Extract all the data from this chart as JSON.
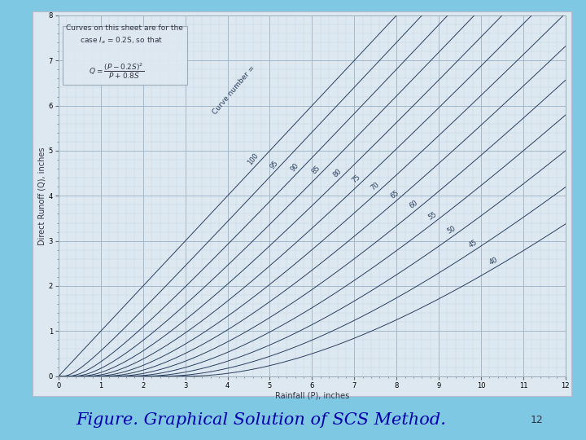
{
  "title": "Figure. Graphical Solution of SCS Method.",
  "page_num": "12",
  "xlabel": "Rainfall (P), inches",
  "ylabel": "Direct Runoff (Q), inches",
  "xlim": [
    0,
    12
  ],
  "ylim": [
    0,
    8
  ],
  "xticks": [
    0,
    1,
    2,
    3,
    4,
    5,
    6,
    7,
    8,
    9,
    10,
    11,
    12
  ],
  "yticks": [
    0,
    1,
    2,
    3,
    4,
    5,
    6,
    7,
    8
  ],
  "curve_numbers": [
    100,
    95,
    90,
    85,
    80,
    75,
    70,
    65,
    60,
    55,
    50,
    45,
    40
  ],
  "background_outer": "#7ec8e3",
  "background_plot": "#dde8f0",
  "background_frame": "#dde8f0",
  "grid_color_major": "#9ab0c4",
  "grid_color_minor": "#c0d4e0",
  "curve_color": "#2a3f5f",
  "annotation_box_color": "#dde8f0",
  "title_color": "#0000aa",
  "title_fontsize": 15,
  "axis_label_fontsize": 7,
  "curve_label_fontsize": 6,
  "tick_label_fontsize": 6
}
